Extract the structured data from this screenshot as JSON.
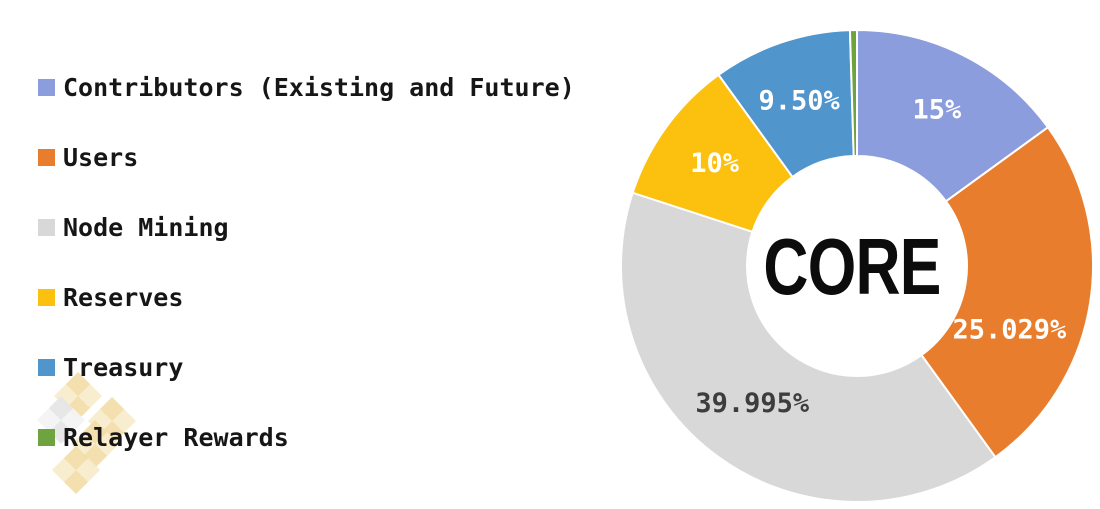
{
  "chart_data": {
    "type": "pie",
    "subtype": "donut",
    "center_label": "CORE",
    "direction": "clockwise",
    "start_angle_deg": 0,
    "legend_position": "left",
    "total": 100,
    "slices": [
      {
        "label": "Contributors (Existing and Future)",
        "value": 15,
        "display": "15%",
        "color": "#8C9DDD",
        "label_color": "#FFFFFF",
        "label_angle": 27,
        "label_radius": 176
      },
      {
        "label": "Users",
        "value": 25.029,
        "display": "25.029%",
        "color": "#E87E2D",
        "label_color": "#FFFFFF",
        "label_angle": 112.5,
        "label_radius": 165
      },
      {
        "label": "Node Mining",
        "value": 39.995,
        "display": "39.995%",
        "color": "#D8D8D8",
        "label_color": "#3D3D3D",
        "label_angle": 217.5,
        "label_radius": 172
      },
      {
        "label": "Reserves",
        "value": 10,
        "display": "10%",
        "color": "#FCC00F",
        "label_color": "#FFFFFF",
        "label_angle": 306,
        "label_radius": 176
      },
      {
        "label": "Treasury",
        "value": 9.5,
        "display": "9.50%",
        "color": "#5195CD",
        "label_color": "#FFFFFF",
        "label_angle": 340.8,
        "label_radius": 176
      },
      {
        "label": "Relayer Rewards",
        "value": 0.476,
        "display": "",
        "color": "#6FA33F",
        "label_color": "#FFFFFF",
        "label_angle": 359.1,
        "label_radius": 176
      }
    ],
    "slice_border_color": "#FFFFFF",
    "label_text_colors_note": "all slice labels white except Node Mining dark gray"
  },
  "watermark": {
    "beige_light": "#F8ECCB",
    "beige_dark": "#F2DEAA",
    "gray_light": "#F4F4F4",
    "gray_dark": "#E6E6E6"
  }
}
